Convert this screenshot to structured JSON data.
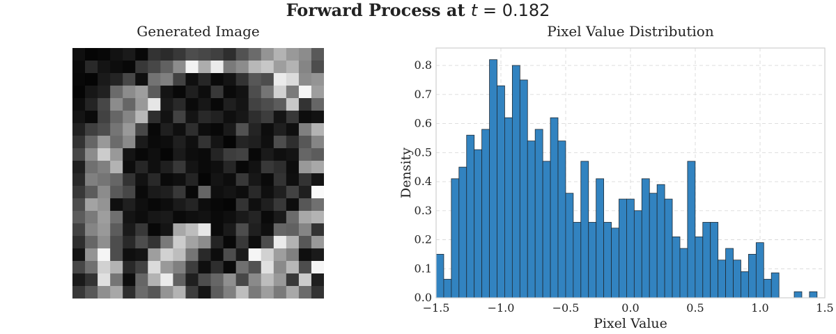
{
  "figure": {
    "title_prefix": "Forward Process at ",
    "title_math": "= 0.182",
    "title_math_var": "t"
  },
  "left_panel": {
    "title": "Generated Image",
    "grid_size": 20,
    "pixels": [
      [
        0.06,
        0.02,
        0.03,
        0.07,
        0.1,
        0.03,
        0.2,
        0.17,
        0.22,
        0.3,
        0.28,
        0.25,
        0.18,
        0.32,
        0.42,
        0.58,
        0.7,
        0.6,
        0.55,
        0.35
      ],
      [
        0.04,
        0.16,
        0.08,
        0.05,
        0.03,
        0.22,
        0.28,
        0.38,
        0.55,
        0.95,
        0.68,
        0.92,
        0.48,
        0.55,
        0.72,
        0.78,
        0.62,
        0.7,
        0.52,
        0.3
      ],
      [
        0.03,
        0.02,
        0.1,
        0.14,
        0.28,
        0.06,
        0.45,
        0.5,
        0.26,
        0.06,
        0.15,
        0.04,
        0.08,
        0.2,
        0.34,
        0.3,
        0.92,
        0.86,
        0.55,
        0.58
      ],
      [
        0.02,
        0.09,
        0.13,
        0.42,
        0.55,
        0.62,
        0.36,
        0.08,
        0.03,
        0.12,
        0.05,
        0.22,
        0.04,
        0.07,
        0.3,
        0.46,
        0.82,
        0.48,
        0.96,
        0.62
      ],
      [
        0.05,
        0.14,
        0.28,
        0.55,
        0.4,
        0.6,
        0.9,
        0.1,
        0.16,
        0.04,
        0.09,
        0.03,
        0.12,
        0.08,
        0.26,
        0.3,
        0.36,
        0.78,
        0.2,
        0.4
      ],
      [
        0.08,
        0.04,
        0.26,
        0.4,
        0.52,
        0.72,
        0.18,
        0.07,
        0.26,
        0.08,
        0.16,
        0.13,
        0.06,
        0.09,
        0.18,
        0.24,
        0.08,
        0.22,
        0.05,
        0.07
      ],
      [
        0.13,
        0.25,
        0.3,
        0.46,
        0.6,
        0.28,
        0.03,
        0.12,
        0.06,
        0.18,
        0.05,
        0.03,
        0.1,
        0.32,
        0.14,
        0.05,
        0.12,
        0.06,
        0.5,
        0.7
      ],
      [
        0.2,
        0.4,
        0.6,
        0.42,
        0.54,
        0.1,
        0.04,
        0.05,
        0.12,
        0.06,
        0.2,
        0.08,
        0.02,
        0.14,
        0.12,
        0.06,
        0.3,
        0.18,
        0.34,
        0.52
      ],
      [
        0.28,
        0.55,
        0.8,
        0.6,
        0.08,
        0.03,
        0.06,
        0.02,
        0.1,
        0.05,
        0.04,
        0.14,
        0.24,
        0.26,
        0.03,
        0.1,
        0.06,
        0.08,
        0.4,
        0.36
      ],
      [
        0.12,
        0.44,
        0.5,
        0.7,
        0.05,
        0.15,
        0.06,
        0.12,
        0.22,
        0.08,
        0.04,
        0.06,
        0.15,
        0.03,
        0.07,
        0.22,
        0.18,
        0.05,
        0.6,
        0.66
      ],
      [
        0.16,
        0.5,
        0.46,
        0.4,
        0.2,
        0.07,
        0.16,
        0.04,
        0.06,
        0.14,
        0.02,
        0.08,
        0.05,
        0.22,
        0.09,
        0.04,
        0.2,
        0.06,
        0.2,
        0.08
      ],
      [
        0.22,
        0.36,
        0.55,
        0.35,
        0.28,
        0.04,
        0.1,
        0.12,
        0.22,
        0.03,
        0.4,
        0.06,
        0.08,
        0.05,
        0.16,
        0.06,
        0.12,
        0.26,
        0.12,
        0.98
      ],
      [
        0.3,
        0.64,
        0.58,
        0.06,
        0.12,
        0.06,
        0.03,
        0.05,
        0.1,
        0.14,
        0.05,
        0.03,
        0.02,
        0.2,
        0.06,
        0.12,
        0.22,
        0.05,
        0.34,
        0.44
      ],
      [
        0.36,
        0.48,
        0.62,
        0.44,
        0.08,
        0.05,
        0.09,
        0.1,
        0.04,
        0.06,
        0.07,
        0.04,
        0.06,
        0.1,
        0.14,
        0.04,
        0.1,
        0.42,
        0.66,
        0.7
      ],
      [
        0.26,
        0.52,
        0.6,
        0.36,
        0.1,
        0.22,
        0.03,
        0.08,
        0.66,
        0.74,
        0.9,
        0.04,
        0.1,
        0.3,
        0.12,
        0.06,
        0.4,
        0.38,
        0.52,
        0.2
      ],
      [
        0.18,
        0.4,
        0.56,
        0.3,
        0.16,
        0.3,
        0.2,
        0.48,
        0.8,
        0.64,
        0.55,
        0.14,
        0.03,
        0.22,
        0.05,
        0.3,
        0.92,
        0.7,
        0.34,
        0.6
      ],
      [
        0.08,
        0.58,
        0.96,
        0.3,
        0.06,
        0.08,
        0.62,
        0.82,
        0.74,
        0.46,
        0.16,
        0.05,
        0.3,
        0.1,
        0.96,
        0.82,
        0.62,
        0.5,
        0.06,
        0.1
      ],
      [
        0.28,
        0.44,
        0.82,
        0.7,
        0.16,
        0.26,
        0.86,
        0.6,
        0.5,
        0.24,
        0.06,
        0.18,
        0.04,
        0.44,
        0.32,
        0.88,
        0.54,
        0.72,
        0.3,
        0.96
      ],
      [
        0.1,
        0.2,
        0.88,
        0.46,
        0.05,
        0.4,
        0.7,
        0.92,
        0.38,
        0.12,
        0.3,
        0.4,
        0.56,
        0.28,
        0.54,
        0.74,
        0.6,
        0.22,
        0.8,
        0.12
      ],
      [
        0.22,
        0.34,
        0.56,
        0.66,
        0.18,
        0.42,
        0.34,
        0.58,
        0.7,
        0.24,
        0.08,
        0.36,
        0.5,
        0.74,
        0.48,
        0.62,
        0.48,
        0.66,
        0.42,
        0.2
      ]
    ]
  },
  "chart_data": {
    "type": "bar",
    "title": "Pixel Value Distribution",
    "xlabel": "Pixel Value",
    "ylabel": "Density",
    "xlim": [
      -1.5,
      1.5
    ],
    "ylim": [
      0.0,
      0.86
    ],
    "xticks": [
      -1.5,
      -1.0,
      -0.5,
      0.0,
      0.5,
      1.0,
      1.5
    ],
    "xtick_labels": [
      "−1.5",
      "−1.0",
      "−0.5",
      "0.0",
      "0.5",
      "1.0",
      "1.5"
    ],
    "yticks": [
      0.0,
      0.1,
      0.2,
      0.3,
      0.4,
      0.5,
      0.6,
      0.7,
      0.8
    ],
    "ytick_labels": [
      "0.0",
      "0.1",
      "0.2",
      "0.3",
      "0.4",
      "0.5",
      "0.6",
      "0.7",
      "0.8"
    ],
    "grid": true,
    "bin_start": -1.5,
    "bin_width": 0.0588,
    "values": [
      0.15,
      0.064,
      0.41,
      0.45,
      0.56,
      0.51,
      0.58,
      0.82,
      0.73,
      0.62,
      0.8,
      0.75,
      0.54,
      0.58,
      0.47,
      0.62,
      0.54,
      0.36,
      0.26,
      0.47,
      0.26,
      0.41,
      0.26,
      0.24,
      0.34,
      0.34,
      0.3,
      0.41,
      0.36,
      0.39,
      0.34,
      0.21,
      0.17,
      0.47,
      0.21,
      0.26,
      0.26,
      0.13,
      0.17,
      0.13,
      0.09,
      0.15,
      0.19,
      0.064,
      0.086,
      0,
      0,
      0.021,
      0,
      0.021
    ],
    "bar_color": "#3283c0",
    "edge_color": "#1f2a33"
  }
}
